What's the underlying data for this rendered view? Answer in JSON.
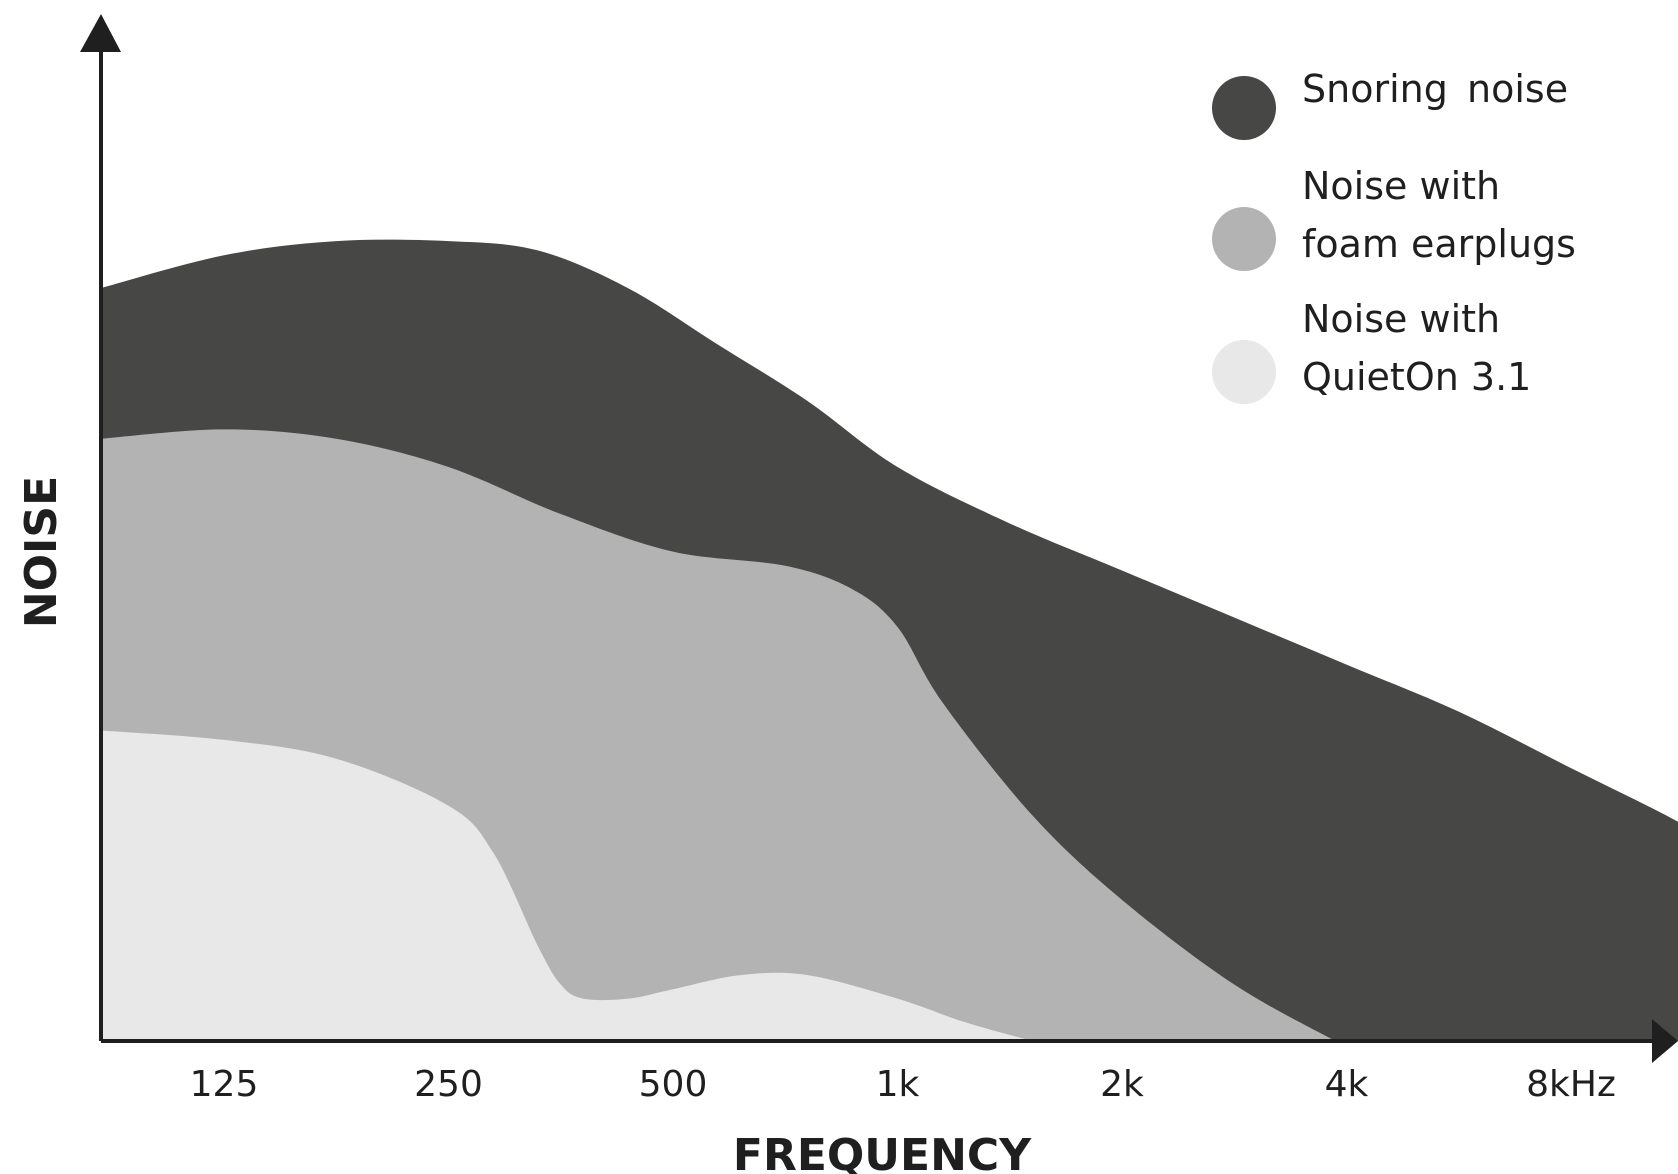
{
  "chart_data": {
    "type": "area",
    "title": "",
    "xlabel": "FREQUENCY",
    "ylabel": "NOISE",
    "categories": [
      "125",
      "250",
      "500",
      "1k",
      "2k",
      "4k",
      "8kHz"
    ],
    "x_scale": "log2",
    "y_axis_ticks": "none",
    "ylim": [
      0,
      100
    ],
    "grid": false,
    "legend_position": "top-right",
    "series": [
      {
        "name": [
          "Snoring",
          "noise"
        ],
        "color": "#474746",
        "points": [
          [
            -0.55,
            80
          ],
          [
            0,
            83.5
          ],
          [
            0.5,
            85
          ],
          [
            1,
            85
          ],
          [
            1.4,
            84
          ],
          [
            1.8,
            80
          ],
          [
            2.2,
            74
          ],
          [
            2.6,
            68
          ],
          [
            3,
            61
          ],
          [
            3.5,
            55
          ],
          [
            4,
            50
          ],
          [
            4.5,
            45
          ],
          [
            5,
            40
          ],
          [
            5.5,
            35
          ],
          [
            6,
            29
          ],
          [
            6.5,
            23
          ],
          [
            7,
            16
          ],
          [
            7.1,
            15
          ]
        ]
      },
      {
        "name": [
          "Noise with",
          "foam earplugs"
        ],
        "color": "#b3b3b3",
        "points": [
          [
            -0.55,
            64
          ],
          [
            0,
            65
          ],
          [
            0.5,
            64
          ],
          [
            1,
            61
          ],
          [
            1.5,
            56
          ],
          [
            2,
            52
          ],
          [
            2.5,
            50.5
          ],
          [
            2.8,
            48
          ],
          [
            3,
            44
          ],
          [
            3.2,
            36
          ],
          [
            3.6,
            24
          ],
          [
            4,
            15
          ],
          [
            4.5,
            6
          ],
          [
            4.95,
            0
          ]
        ]
      },
      {
        "name": [
          "Noise with",
          "QuietOn 3.1"
        ],
        "color": "#e8e8e8",
        "points": [
          [
            -0.55,
            33
          ],
          [
            0,
            32
          ],
          [
            0.5,
            30
          ],
          [
            1,
            25
          ],
          [
            1.2,
            20
          ],
          [
            1.4,
            10
          ],
          [
            1.5,
            6
          ],
          [
            1.6,
            4.5
          ],
          [
            1.8,
            4.5
          ],
          [
            2,
            5.5
          ],
          [
            2.3,
            7
          ],
          [
            2.6,
            7
          ],
          [
            3,
            4.5
          ],
          [
            3.3,
            2
          ],
          [
            3.6,
            0
          ]
        ]
      }
    ]
  }
}
